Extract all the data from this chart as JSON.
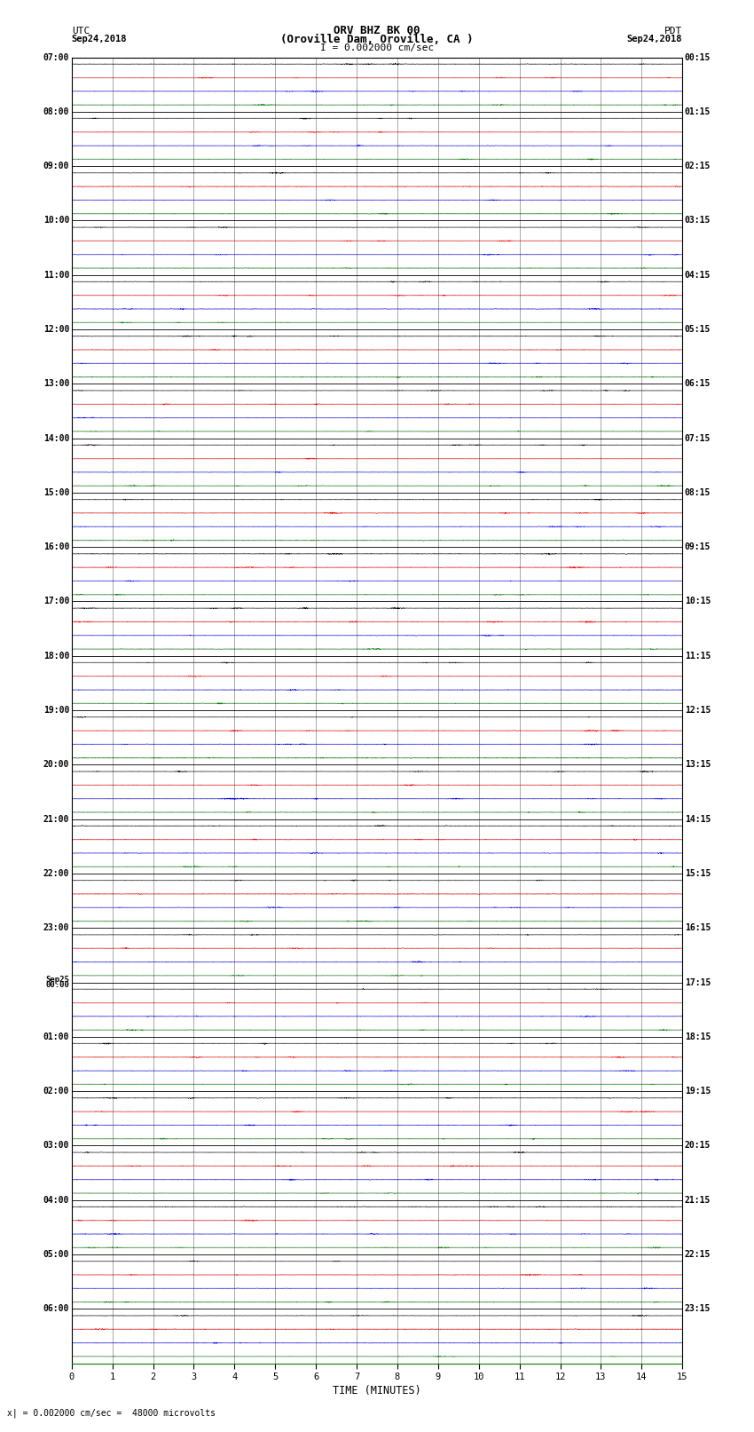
{
  "title_line1": "ORV BHZ BK 00",
  "title_line2": "(Oroville Dam, Oroville, CA )",
  "scale_label": "I = 0.002000 cm/sec",
  "left_label_top": "UTC",
  "left_label_date": "Sep24,2018",
  "right_label_top": "PDT",
  "right_label_date": "Sep24,2018",
  "xlabel": "TIME (MINUTES)",
  "bottom_note": "x| = 0.002000 cm/sec =  48000 microvolts",
  "xmin": 0,
  "xmax": 15,
  "left_times": [
    "07:00",
    "08:00",
    "09:00",
    "10:00",
    "11:00",
    "12:00",
    "13:00",
    "14:00",
    "15:00",
    "16:00",
    "17:00",
    "18:00",
    "19:00",
    "20:00",
    "21:00",
    "22:00",
    "23:00",
    "Sep25\n00:00",
    "01:00",
    "02:00",
    "03:00",
    "04:00",
    "05:00",
    "06:00"
  ],
  "right_times": [
    "00:15",
    "01:15",
    "02:15",
    "03:15",
    "04:15",
    "05:15",
    "06:15",
    "07:15",
    "08:15",
    "09:15",
    "10:15",
    "11:15",
    "12:15",
    "13:15",
    "14:15",
    "15:15",
    "16:15",
    "17:15",
    "18:15",
    "19:15",
    "20:15",
    "21:15",
    "22:15",
    "23:15"
  ],
  "trace_colors": [
    "black",
    "red",
    "blue",
    "green"
  ],
  "n_rows": 24,
  "traces_per_row": 4,
  "fig_width": 8.5,
  "fig_height": 16.13,
  "background_color": "#ffffff",
  "trace_amplitude": 0.06,
  "noise_scale": 0.04,
  "spike_prob": 0.003,
  "spike_amp": 0.25
}
